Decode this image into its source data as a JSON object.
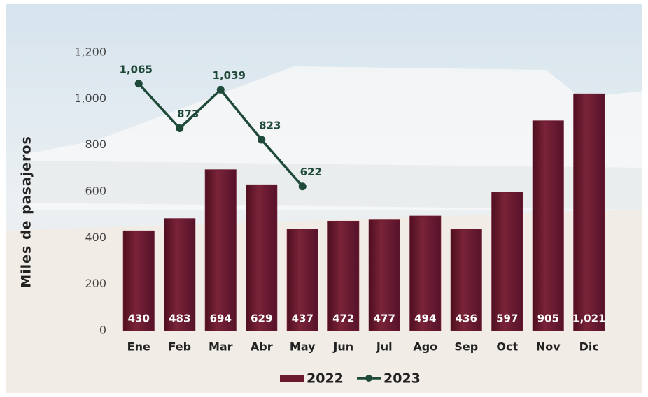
{
  "chart_data": {
    "type": "bar_line",
    "y_axis_label": "Miles de pasajeros",
    "categories": [
      "Ene",
      "Feb",
      "Mar",
      "Abr",
      "May",
      "Jun",
      "Jul",
      "Ago",
      "Sep",
      "Oct",
      "Nov",
      "Dic"
    ],
    "series": [
      {
        "name": "2022",
        "type": "bar",
        "color": "#6b1a30",
        "values": [
          430,
          483,
          694,
          629,
          437,
          472,
          477,
          494,
          436,
          597,
          905,
          1021
        ],
        "value_labels": [
          "430",
          "483",
          "694",
          "629",
          "437",
          "472",
          "477",
          "494",
          "436",
          "597",
          "905",
          "1,021"
        ]
      },
      {
        "name": "2023",
        "type": "line",
        "color": "#1f4a3a",
        "values": [
          1065,
          873,
          1039,
          823,
          622,
          null,
          null,
          null,
          null,
          null,
          null,
          null
        ],
        "value_labels": [
          "1,065",
          "873",
          "1,039",
          "823",
          "622",
          null,
          null,
          null,
          null,
          null,
          null,
          null
        ]
      }
    ],
    "ylim": [
      0,
      1200
    ],
    "yticks": [
      0,
      200,
      400,
      600,
      {
        "value": 800,
        "label": "800"
      },
      {
        "value": 1000,
        "label": "1,000"
      },
      {
        "value": 1200,
        "label": "1,200"
      }
    ],
    "legend": "bottom"
  }
}
